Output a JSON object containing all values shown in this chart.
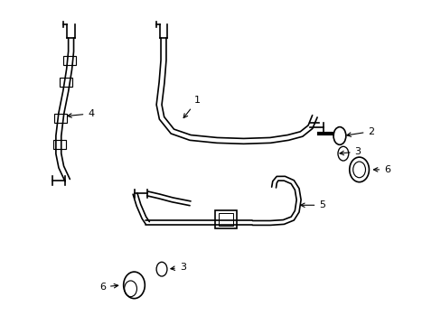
{
  "background_color": "#ffffff",
  "line_color": "#000000",
  "lw": 1.2,
  "fig_width": 4.89,
  "fig_height": 3.6,
  "dpi": 100
}
